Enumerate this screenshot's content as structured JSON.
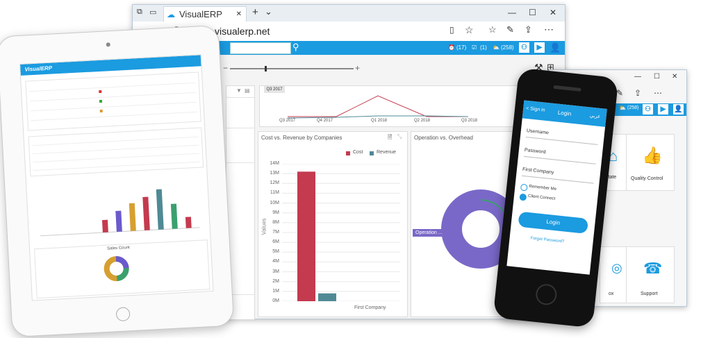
{
  "browser": {
    "tab_title": "VisualERP",
    "url": "visualerp.net",
    "nav": {
      "back": "←",
      "forward": "→",
      "refresh": "↻",
      "home": "⌂"
    },
    "window_controls": {
      "minimize": "—",
      "maximize": "☐",
      "close": "✕"
    },
    "tab_new": "+",
    "tab_list": "⌄"
  },
  "app": {
    "badges": {
      "alarm": "(17)",
      "tasks": "(1)",
      "weather": "(258)"
    },
    "zoom": {
      "minus": "−",
      "plus": "+"
    },
    "period_chart": {
      "selected_label": "Q3 2017",
      "x_labels": [
        "Q3 2017",
        "Q4 2017",
        "Q1 2018",
        "Q2 2018",
        "Q3 2018"
      ]
    },
    "cost_panel": {
      "title": "Cost vs. Revenue by Companies",
      "legend": [
        "Cost",
        "Revenue"
      ],
      "ylabel": "Values",
      "yticks": [
        "14M",
        "13M",
        "12M",
        "11M",
        "10M",
        "9M",
        "8M",
        "7M",
        "6M",
        "5M",
        "4M",
        "3M",
        "2M",
        "1M",
        "0M"
      ],
      "xlabel": "First Company"
    },
    "op_panel": {
      "title": "Operation vs. Overhead",
      "callout": "Operation ..."
    }
  },
  "chart_data": {
    "type": "bar",
    "categories": [
      "First Company"
    ],
    "series": [
      {
        "name": "Cost",
        "values": [
          13200000
        ],
        "color": "#c43a4f"
      },
      {
        "name": "Revenue",
        "values": [
          800000
        ],
        "color": "#4f8a94"
      }
    ],
    "title": "Cost vs. Revenue by Companies",
    "ylabel": "Values",
    "ylim": [
      0,
      14000000
    ]
  },
  "win2": {
    "badge": "(258)",
    "tiles": [
      {
        "label": "state"
      },
      {
        "label": "Quality Control"
      },
      {
        "label": "ox"
      },
      {
        "label": "Support"
      }
    ]
  },
  "phone": {
    "back": "< Sign in",
    "title": "Login",
    "lang": "عربي",
    "username": "Username",
    "password": "Password",
    "company": "First Company",
    "remember": "Remember Me",
    "client": "Client Connect",
    "login_btn": "Login",
    "forgot": "Forgot Password?"
  },
  "tablet": {
    "brand": "VisualERP",
    "donut_title": "Sales Count"
  }
}
